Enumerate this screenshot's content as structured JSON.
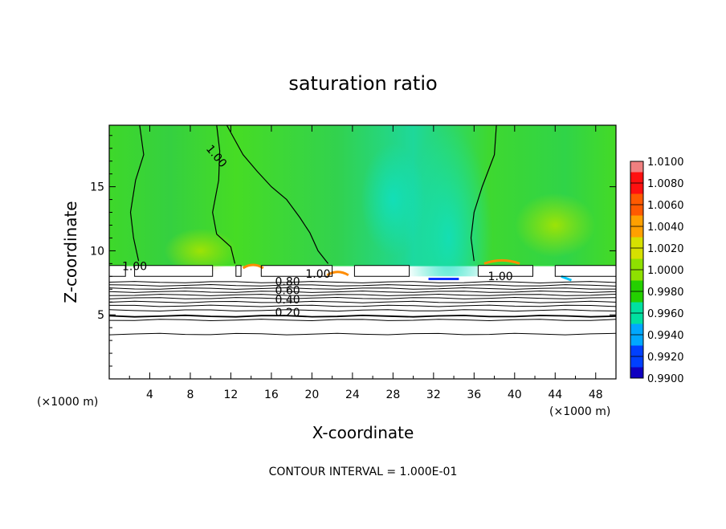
{
  "chart_data": {
    "type": "heatmap",
    "title": "saturation ratio",
    "xlabel": "X-coordinate",
    "ylabel": "Z-coordinate",
    "x_unit": "(×1000 m)",
    "x_unit_right": "(×1000 m)",
    "xlim": [
      0,
      50
    ],
    "ylim": [
      0,
      19.8
    ],
    "x_ticks": [
      4,
      8,
      12,
      16,
      20,
      24,
      28,
      32,
      36,
      40,
      44,
      48
    ],
    "y_ticks": [
      5,
      10,
      15
    ],
    "colorbar": {
      "labels": [
        "1.0100",
        "1.0080",
        "1.0060",
        "1.0040",
        "1.0020",
        "1.0000",
        "0.9980",
        "0.9960",
        "0.9940",
        "0.9920",
        "0.9900"
      ],
      "colors": [
        "#f08080",
        "#ff1010",
        "#ff5a00",
        "#ffa000",
        "#d6e000",
        "#8ee000",
        "#24d000",
        "#00e0a0",
        "#00a8ff",
        "#0040ff",
        "#1000c0",
        "#7000b0"
      ]
    },
    "contour_interval_text": "CONTOUR INTERVAL = 1.000E-01",
    "contour_labels": [
      {
        "text": "1.00",
        "x": 10.3,
        "y": 17.2
      },
      {
        "text": "1.00",
        "x": 2.5,
        "y": 8.5
      },
      {
        "text": "1.00",
        "x": 20.6,
        "y": 7.9
      },
      {
        "text": "1.00",
        "x": 38.6,
        "y": 7.7
      },
      {
        "text": "0.80",
        "x": 17.6,
        "y": 7.3
      },
      {
        "text": "0.60",
        "x": 17.6,
        "y": 6.6
      },
      {
        "text": "0.40",
        "x": 17.6,
        "y": 5.9
      },
      {
        "text": "0.20",
        "x": 17.6,
        "y": 4.9
      }
    ],
    "field_zones": [
      {
        "name": "upper-moist-layer",
        "z_range": [
          8.8,
          19.8
        ],
        "value": 1.0
      },
      {
        "name": "dry-lower-layer",
        "z_range": [
          0,
          7.6
        ],
        "value": 0.0
      }
    ]
  }
}
